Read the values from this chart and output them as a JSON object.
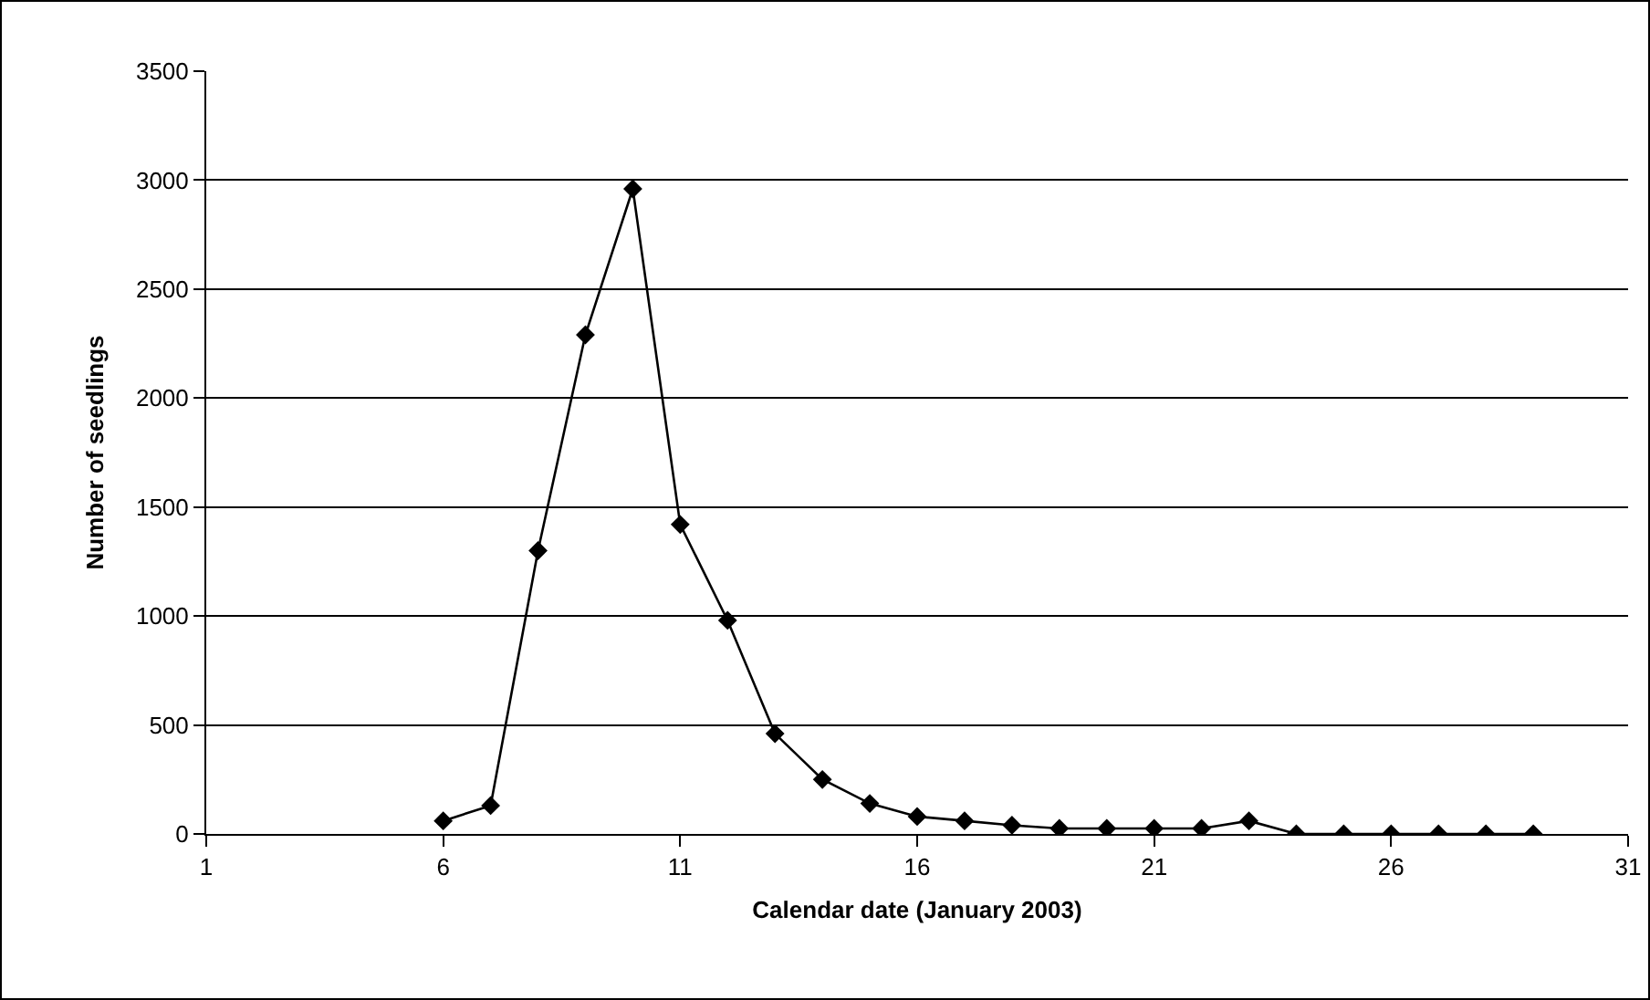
{
  "chart_data": {
    "type": "line",
    "xlabel": "Calendar date (January 2003)",
    "ylabel": "Number of seedlings",
    "x": [
      6,
      7,
      8,
      9,
      10,
      11,
      12,
      13,
      14,
      15,
      16,
      17,
      18,
      19,
      20,
      21,
      22,
      23,
      24,
      25,
      26,
      27,
      28,
      29
    ],
    "series": [
      {
        "color": "#000000",
        "values": [
          60,
          130,
          1300,
          2290,
          2960,
          1420,
          980,
          460,
          250,
          140,
          80,
          60,
          40,
          25,
          25,
          25,
          25,
          60,
          0,
          0,
          0,
          0,
          0,
          0
        ]
      }
    ],
    "xlim": [
      1,
      31
    ],
    "xticks": [
      1,
      6,
      11,
      16,
      21,
      26,
      31
    ],
    "ylim": [
      0,
      3500
    ],
    "yticks": [
      0,
      500,
      1000,
      1500,
      2000,
      2500,
      3000,
      3500
    ],
    "grid": "y",
    "marker": "diamond",
    "line_style": "solid"
  }
}
